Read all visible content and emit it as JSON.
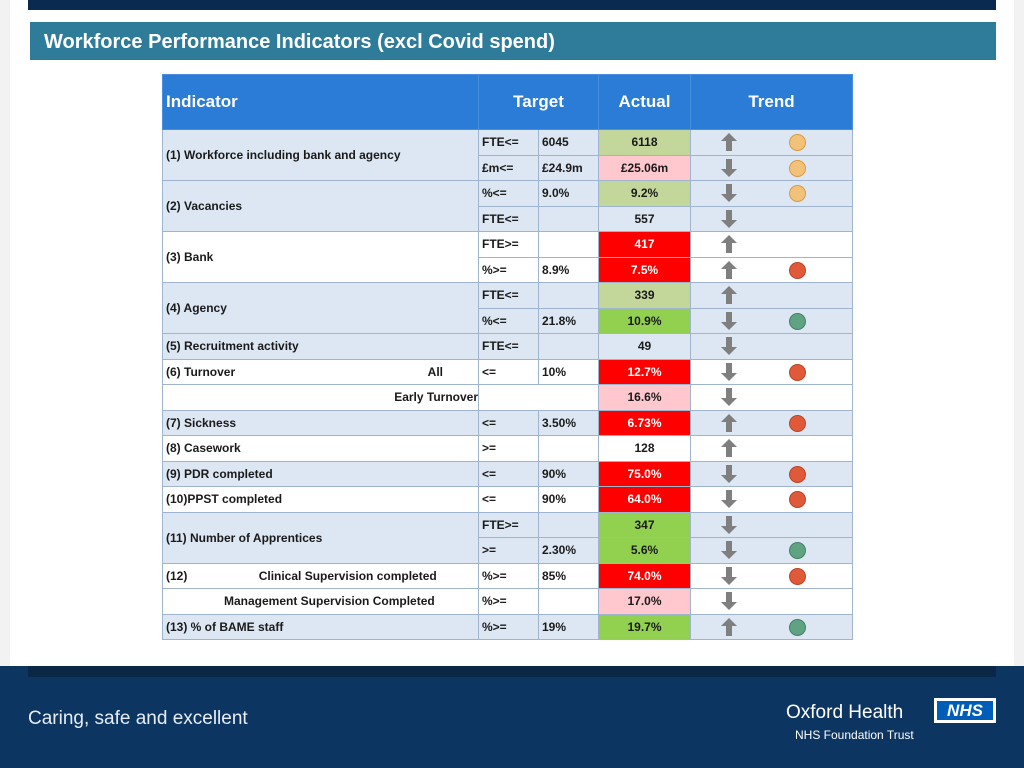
{
  "title": "Workforce Performance Indicators (excl Covid spend)",
  "colors": {
    "header_blue": "#2b7cd6",
    "row_blue": "#dde7f3",
    "light_green": "#c4d79b",
    "green": "#92d050",
    "red": "#ff0000",
    "pink": "#ffc7ce",
    "dot_amber": "#f3c27a",
    "dot_red": "#e05a3a",
    "dot_green": "#5fa383"
  },
  "table": {
    "headers": {
      "indicator": "Indicator",
      "target": "Target",
      "actual": "Actual",
      "trend": "Trend"
    },
    "rows": [
      {
        "indicator": "(1) Workforce including bank and agency",
        "op": "FTE<=",
        "val": "6045",
        "actual": "6118",
        "arrow": "up",
        "dot": "amber"
      },
      {
        "op": "£m<=",
        "val": "£24.9m",
        "actual": "£25.06m",
        "arrow": "down",
        "dot": "amber"
      },
      {
        "indicator": "(2) Vacancies",
        "op": "%<=",
        "val": "9.0%",
        "actual": "9.2%",
        "arrow": "down",
        "dot": "amber"
      },
      {
        "op": "FTE<=",
        "val": "",
        "actual": "557",
        "arrow": "down",
        "dot": "none"
      },
      {
        "indicator": "(3) Bank",
        "op": "FTE>=",
        "val": "",
        "actual": "417",
        "arrow": "up",
        "dot": "none"
      },
      {
        "op": "%>=",
        "val": "8.9%",
        "actual": "7.5%",
        "arrow": "up",
        "dot": "red"
      },
      {
        "indicator": "(4) Agency",
        "op": "FTE<=",
        "val": "",
        "actual": "339",
        "arrow": "up",
        "dot": "none"
      },
      {
        "op": "%<=",
        "val": "21.8%",
        "actual": "10.9%",
        "arrow": "down",
        "dot": "green"
      },
      {
        "indicator": "(5) Recruitment activity",
        "op": "FTE<=",
        "val": "",
        "actual": "49",
        "arrow": "down",
        "dot": "none"
      },
      {
        "indicator": "(6) Turnover",
        "sub": "All",
        "op": "<=",
        "val": "10%",
        "actual": "12.7%",
        "arrow": "down",
        "dot": "red"
      },
      {
        "sub": "Early Turnover",
        "op": "",
        "val": "",
        "actual": "16.6%",
        "arrow": "down",
        "dot": "none"
      },
      {
        "indicator": "(7) Sickness",
        "op": "<=",
        "val": "3.50%",
        "actual": "6.73%",
        "arrow": "up",
        "dot": "red"
      },
      {
        "indicator": "(8) Casework",
        "op": ">=",
        "val": "",
        "actual": "128",
        "arrow": "up",
        "dot": "none"
      },
      {
        "indicator": "(9) PDR completed",
        "op": "<=",
        "val": "90%",
        "actual": "75.0%",
        "arrow": "down",
        "dot": "red"
      },
      {
        "indicator": "(10)PPST completed",
        "op": "<=",
        "val": "90%",
        "actual": "64.0%",
        "arrow": "down",
        "dot": "red"
      },
      {
        "indicator": "(11) Number of Apprentices",
        "op": "FTE>=",
        "val": "",
        "actual": "347",
        "arrow": "down",
        "dot": "none"
      },
      {
        "op": ">=",
        "val": "2.30%",
        "actual": "5.6%",
        "arrow": "down",
        "dot": "green"
      },
      {
        "indicator": "(12)",
        "sub": "Clinical Supervision completed",
        "op": "%>=",
        "val": "85%",
        "actual": "74.0%",
        "arrow": "down",
        "dot": "red"
      },
      {
        "sub": "Management Supervision Completed",
        "op": "%>=",
        "val": "",
        "actual": "17.0%",
        "arrow": "down",
        "dot": "none"
      },
      {
        "indicator": "(13) % of BAME staff",
        "op": "%>=",
        "val": "19%",
        "actual": "19.7%",
        "arrow": "up",
        "dot": "green"
      }
    ]
  },
  "footer": {
    "tagline": "Caring, safe and excellent",
    "org": "Oxford Health",
    "org_sub": "NHS Foundation Trust",
    "logo": "NHS"
  }
}
